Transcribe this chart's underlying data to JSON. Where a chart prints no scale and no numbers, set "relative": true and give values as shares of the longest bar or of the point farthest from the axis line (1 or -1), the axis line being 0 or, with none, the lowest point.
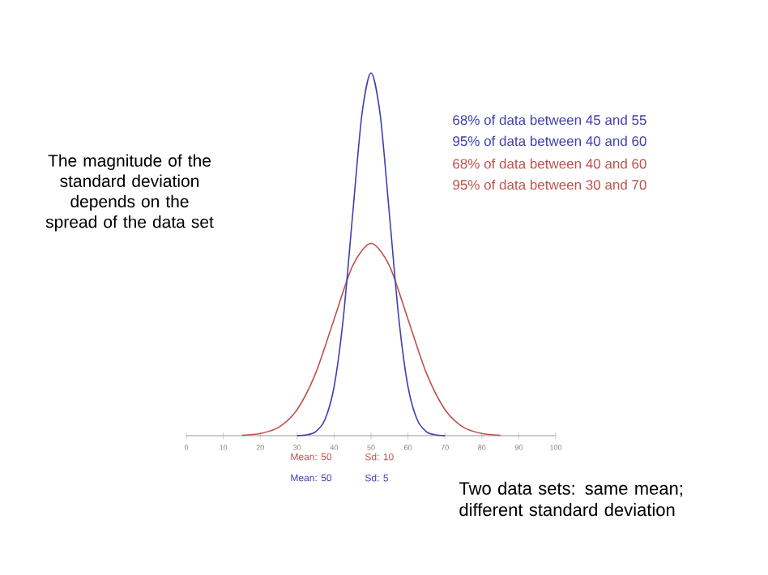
{
  "chart_data": {
    "type": "line",
    "relative": true,
    "xlim": [
      0,
      100
    ],
    "xticks": [
      0,
      10,
      20,
      30,
      40,
      50,
      60,
      70,
      80,
      90,
      100
    ],
    "marker": "none",
    "series": [
      {
        "color": "#c0504d",
        "x": [
          15,
          20,
          25,
          30,
          35,
          40,
          45,
          50,
          55,
          60,
          65,
          70,
          75,
          80,
          85
        ],
        "values": [
          0.001,
          0.006,
          0.023,
          0.072,
          0.172,
          0.321,
          0.468,
          0.53,
          0.468,
          0.321,
          0.172,
          0.072,
          0.023,
          0.006,
          0.001
        ]
      },
      {
        "color": "#3f3fb0",
        "x": [
          30,
          32.5,
          35,
          37.5,
          40,
          42.5,
          45,
          47.5,
          50,
          52.5,
          55,
          57.5,
          60,
          62.5,
          65,
          67.5,
          70
        ],
        "values": [
          0.0003,
          0.002,
          0.011,
          0.044,
          0.135,
          0.325,
          0.607,
          0.883,
          1,
          0.883,
          0.607,
          0.325,
          0.135,
          0.044,
          0.011,
          0.002,
          0.0003
        ]
      }
    ],
    "annotations": [
      "The magnitude of the standard deviation depends on the spread of the data set",
      "68% of data between 45 and 55",
      "95% of data between 40 and 60",
      "68% of data between 40 and 60",
      "95% of data between 30 and 70",
      "Mean: 50",
      "Sd: 10",
      "Mean: 50",
      "Sd: 5",
      "Two data sets:  same mean; different standard deviation"
    ]
  }
}
